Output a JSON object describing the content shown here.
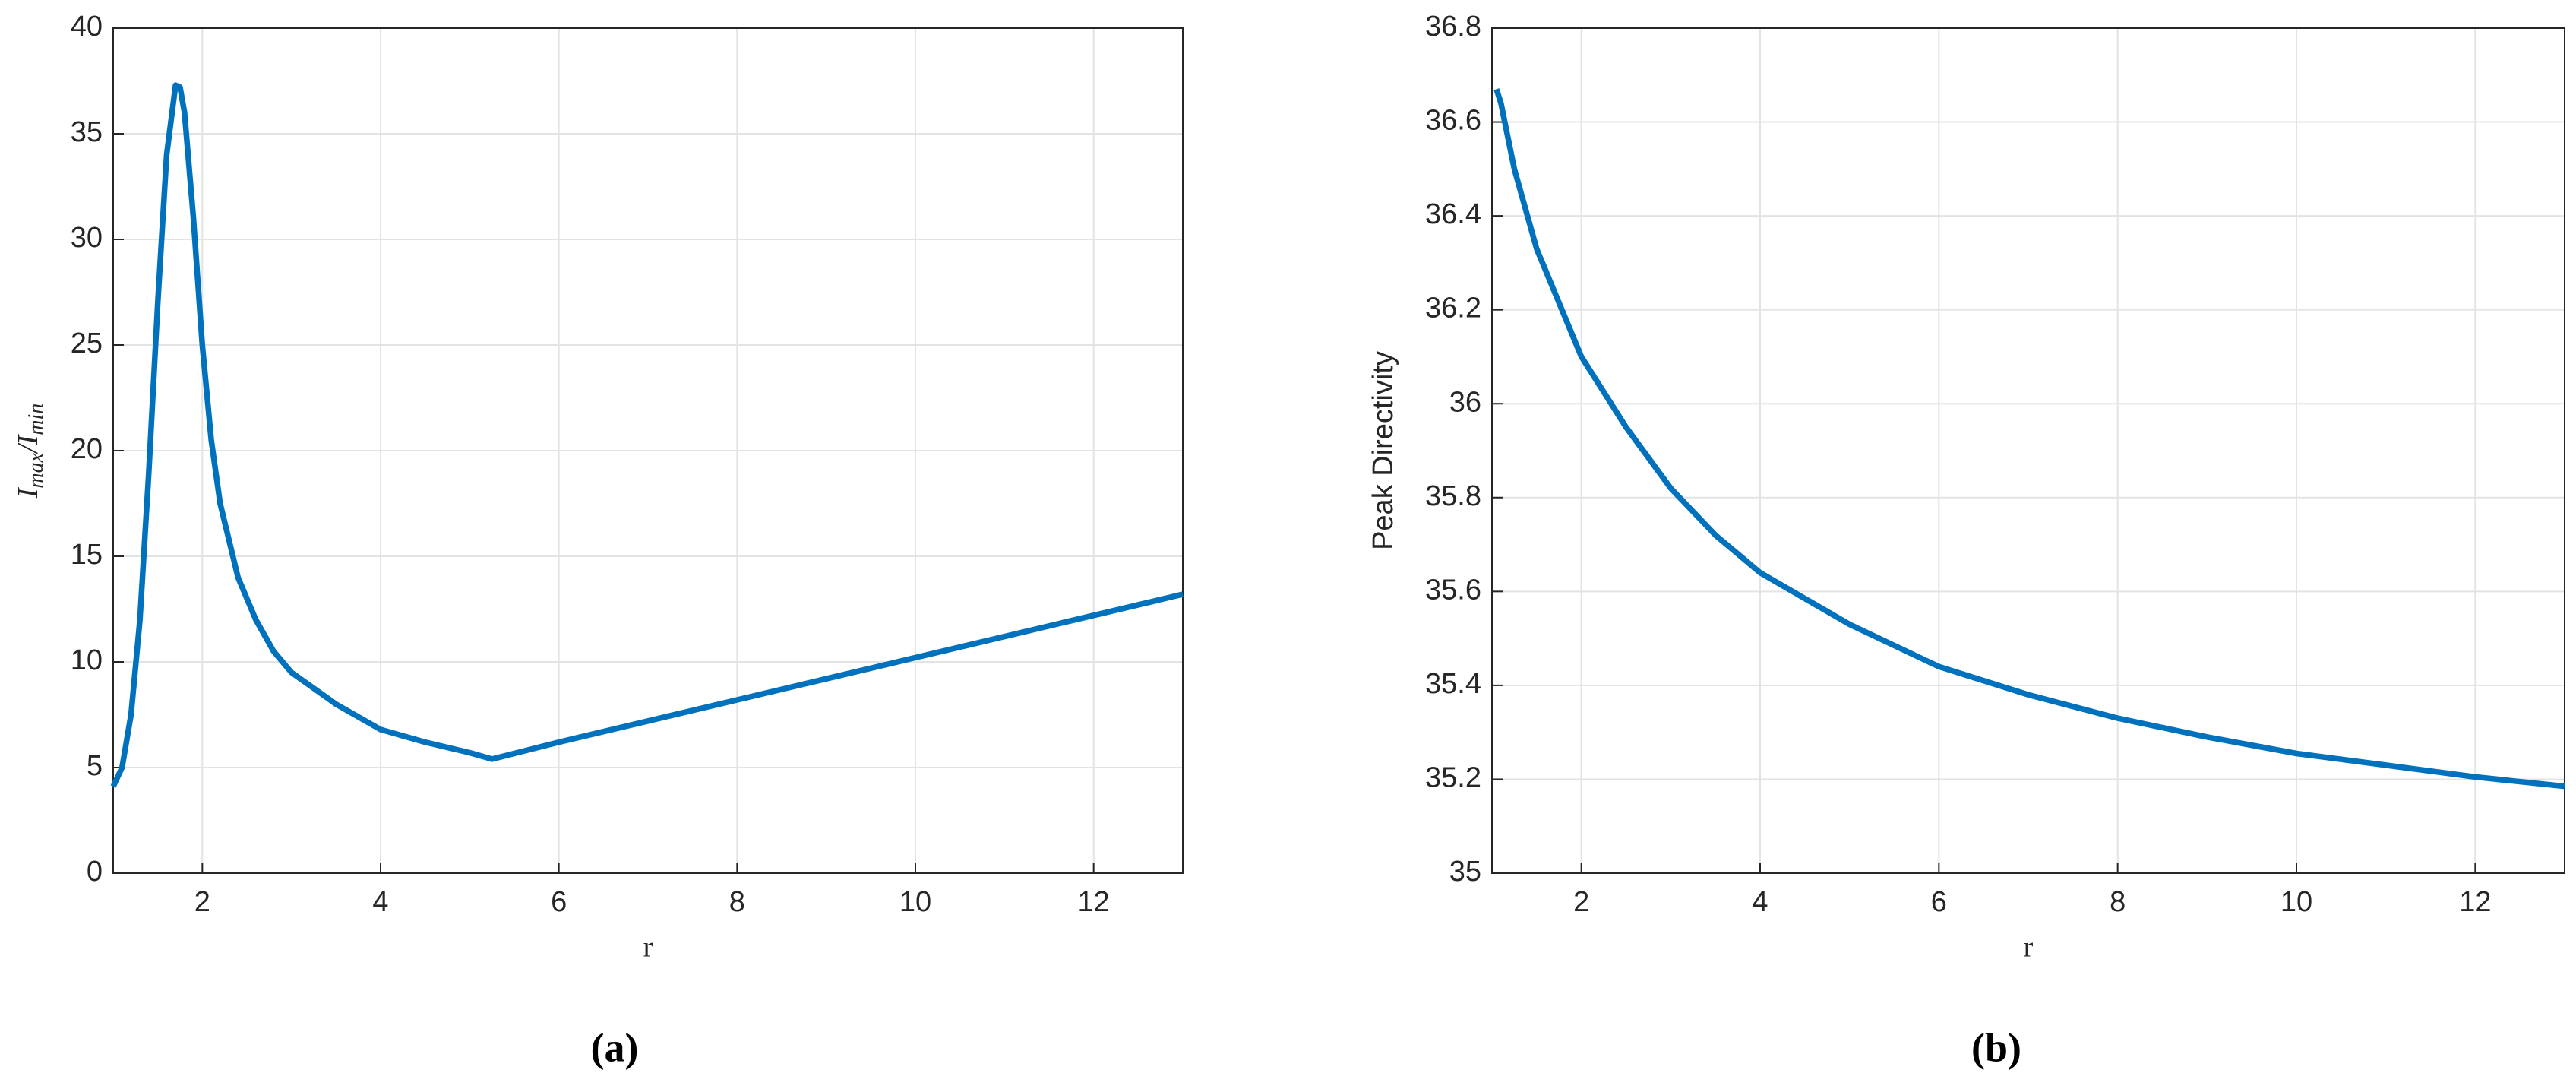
{
  "chart_data": [
    {
      "type": "line",
      "xlabel": "r",
      "ylabel": "I_max/I_min",
      "caption": "(a)",
      "xlim": [
        1,
        13
      ],
      "ylim": [
        0,
        40
      ],
      "xticks": [
        2,
        4,
        6,
        8,
        10,
        12
      ],
      "yticks": [
        0,
        5,
        10,
        15,
        20,
        25,
        30,
        35,
        40
      ],
      "grid": true,
      "x": [
        1.0,
        1.1,
        1.2,
        1.3,
        1.4,
        1.5,
        1.6,
        1.7,
        1.75,
        1.8,
        1.9,
        2.0,
        2.1,
        2.2,
        2.4,
        2.6,
        2.8,
        3.0,
        3.5,
        4.0,
        4.5,
        5.0,
        5.25,
        6,
        7,
        8,
        9,
        10,
        11,
        12,
        13
      ],
      "series": [
        {
          "color": "#0072bd",
          "values": [
            4.1,
            5,
            7.5,
            12,
            19,
            27,
            34,
            37.3,
            37.2,
            36,
            31,
            25,
            20.5,
            17.5,
            14,
            12,
            10.5,
            9.5,
            8,
            6.8,
            6.2,
            5.7,
            5.4,
            6.2,
            7.2,
            8.2,
            9.2,
            10.2,
            11.2,
            12.2,
            13.2
          ]
        }
      ]
    },
    {
      "type": "line",
      "xlabel": "r",
      "ylabel": "Peak Directivity",
      "caption": "(b)",
      "xlim": [
        1,
        13
      ],
      "ylim": [
        35,
        36.8
      ],
      "xticks": [
        2,
        4,
        6,
        8,
        10,
        12
      ],
      "yticks": [
        35,
        35.2,
        35.4,
        35.6,
        35.8,
        36,
        36.2,
        36.4,
        36.6,
        36.8
      ],
      "grid": true,
      "x": [
        1.05,
        1.1,
        1.25,
        1.5,
        2,
        2.5,
        3,
        3.5,
        4,
        5,
        6,
        7,
        8,
        9,
        10,
        11,
        12,
        13
      ],
      "series": [
        {
          "color": "#0072bd",
          "values": [
            36.67,
            36.64,
            36.5,
            36.33,
            36.1,
            35.95,
            35.82,
            35.72,
            35.64,
            35.53,
            35.44,
            35.38,
            35.33,
            35.29,
            35.255,
            35.23,
            35.205,
            35.185
          ]
        }
      ]
    }
  ]
}
